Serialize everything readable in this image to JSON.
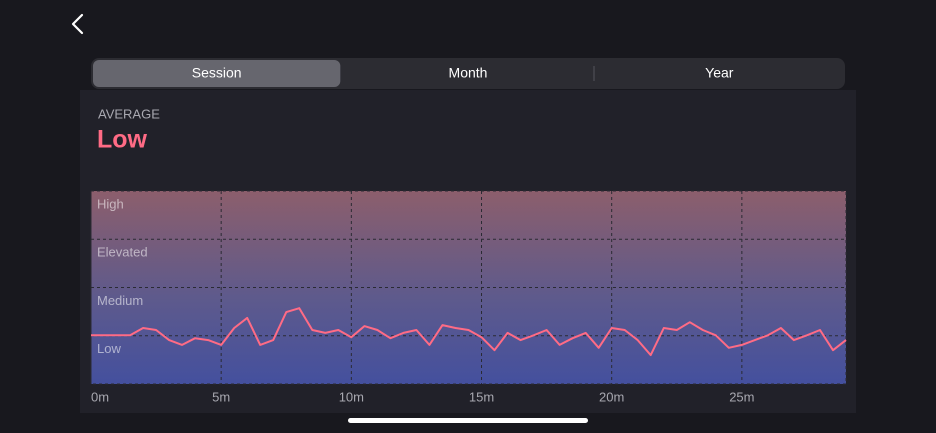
{
  "tabs": [
    "Session",
    "Month",
    "Year"
  ],
  "selected_tab": 0,
  "summary": {
    "label": "AVERAGE",
    "value": "Low"
  },
  "chart_data": {
    "type": "line",
    "color": "#ff6b85",
    "x": [
      0,
      1.5,
      2,
      2.5,
      3,
      3.5,
      4,
      4.5,
      5,
      5.5,
      6,
      6.5,
      7,
      7.5,
      8,
      8.5,
      9,
      9.5,
      10,
      10.5,
      11,
      11.5,
      12,
      12.5,
      13,
      13.5,
      14,
      14.5,
      15,
      15.5,
      16,
      16.5,
      17,
      17.5,
      18,
      18.5,
      19,
      19.5,
      20,
      20.5,
      21,
      21.5,
      22,
      22.5,
      23,
      23.5,
      24,
      24.5,
      25,
      25.5,
      26,
      26.5,
      27,
      27.5,
      28,
      28.5,
      29
    ],
    "values": [
      1.01,
      1.01,
      1.16,
      1.12,
      0.91,
      0.81,
      0.95,
      0.91,
      0.81,
      1.16,
      1.37,
      0.81,
      0.91,
      1.49,
      1.57,
      1.12,
      1.06,
      1.12,
      0.97,
      1.2,
      1.12,
      0.95,
      1.06,
      1.12,
      0.81,
      1.22,
      1.16,
      1.12,
      0.97,
      0.7,
      1.06,
      0.91,
      1.01,
      1.12,
      0.81,
      0.95,
      1.06,
      0.75,
      1.16,
      1.12,
      0.91,
      0.6,
      1.16,
      1.12,
      1.28,
      1.12,
      1.01,
      0.75,
      0.81,
      0.91,
      1.01,
      1.16,
      0.91,
      1.01,
      1.12,
      0.7,
      0.91
    ],
    "xlim": [
      0,
      29
    ],
    "xticks": [
      {
        "value": 0,
        "label": "0m"
      },
      {
        "value": 5,
        "label": "5m"
      },
      {
        "value": 10,
        "label": "10m"
      },
      {
        "value": 15,
        "label": "15m"
      },
      {
        "value": 20,
        "label": "20m"
      },
      {
        "value": 25,
        "label": "25m"
      }
    ],
    "ylim": [
      0,
      4
    ],
    "yticks": [
      {
        "value": 1,
        "label": "Low"
      },
      {
        "value": 2,
        "label": "Medium"
      },
      {
        "value": 3,
        "label": "Elevated"
      },
      {
        "value": 4,
        "label": "High"
      }
    ],
    "grid": true
  }
}
